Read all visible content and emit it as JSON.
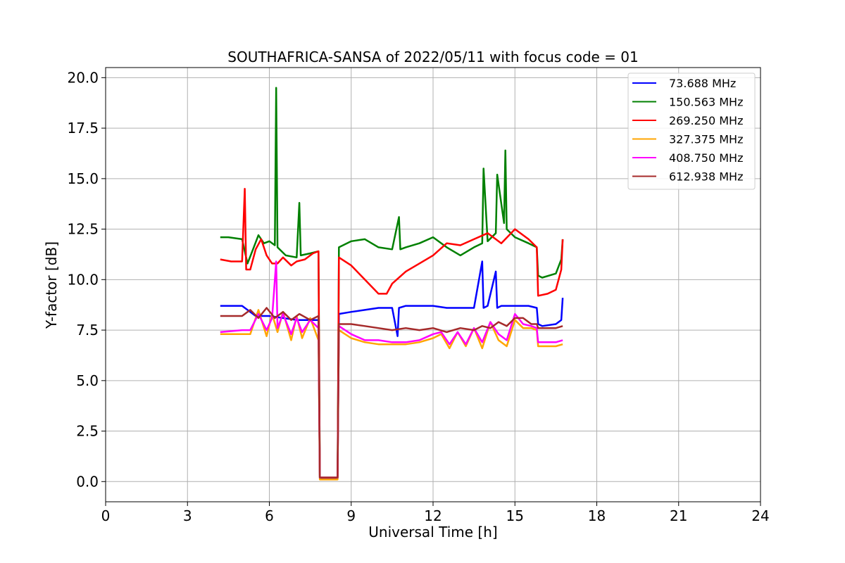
{
  "chart_data": {
    "type": "line",
    "title": "SOUTHAFRICA-SANSA of 2022/05/11 with focus code = 01",
    "xlabel": "Universal Time [h]",
    "ylabel": "Y-factor [dB]",
    "xlim": [
      0,
      24
    ],
    "ylim": [
      -1,
      20.5
    ],
    "xticks": [
      0,
      3,
      6,
      9,
      12,
      15,
      18,
      21,
      24
    ],
    "xtick_labels": [
      "0",
      "3",
      "6",
      "9",
      "12",
      "15",
      "18",
      "21",
      "24"
    ],
    "yticks": [
      0,
      2.5,
      5,
      7.5,
      10,
      12.5,
      15,
      17.5,
      20
    ],
    "ytick_labels": [
      "0.0",
      "2.5",
      "5.0",
      "7.5",
      "10.0",
      "12.5",
      "15.0",
      "17.5",
      "20.0"
    ],
    "grid": true,
    "legend_position": "top-right",
    "series": [
      {
        "name": "73.688 MHz",
        "color": "#0000ff",
        "x": [
          4.2,
          5.0,
          5.5,
          6.0,
          6.5,
          7.0,
          7.5,
          7.8,
          7.85,
          8.5,
          8.55,
          9.0,
          9.5,
          10.0,
          10.5,
          10.7,
          10.75,
          11.0,
          11.5,
          12.0,
          12.5,
          13.0,
          13.5,
          13.8,
          13.85,
          14.0,
          14.3,
          14.35,
          14.5,
          15.0,
          15.5,
          15.8,
          15.85,
          16.0,
          16.5,
          16.7,
          16.75
        ],
        "y": [
          8.7,
          8.7,
          8.2,
          8.2,
          8.1,
          8.0,
          8.0,
          8.0,
          0.15,
          0.15,
          8.3,
          8.4,
          8.5,
          8.6,
          8.6,
          7.2,
          8.6,
          8.7,
          8.7,
          8.7,
          8.6,
          8.6,
          8.6,
          10.9,
          8.6,
          8.7,
          10.4,
          8.6,
          8.7,
          8.7,
          8.7,
          8.6,
          7.8,
          7.7,
          7.8,
          8.0,
          9.1
        ]
      },
      {
        "name": "150.563 MHz",
        "color": "#008000",
        "x": [
          4.2,
          4.5,
          5.0,
          5.2,
          5.4,
          5.6,
          5.8,
          6.0,
          6.2,
          6.25,
          6.3,
          6.6,
          7.0,
          7.1,
          7.15,
          7.5,
          7.8,
          7.85,
          8.5,
          8.55,
          9.0,
          9.5,
          10.0,
          10.5,
          10.75,
          10.8,
          11.0,
          11.5,
          12.0,
          12.5,
          13.0,
          13.5,
          13.8,
          13.85,
          14.0,
          14.3,
          14.35,
          14.6,
          14.65,
          14.7,
          15.0,
          15.5,
          15.8,
          15.85,
          16.0,
          16.5,
          16.7,
          16.75
        ],
        "y": [
          12.1,
          12.1,
          12.0,
          10.8,
          11.5,
          12.2,
          11.8,
          11.9,
          11.7,
          19.5,
          11.6,
          11.2,
          11.1,
          13.8,
          11.2,
          11.3,
          11.4,
          0.2,
          0.2,
          11.6,
          11.9,
          12.0,
          11.6,
          11.5,
          13.1,
          11.5,
          11.6,
          11.8,
          12.1,
          11.6,
          11.2,
          11.6,
          11.8,
          15.5,
          11.9,
          12.3,
          15.2,
          12.8,
          16.4,
          12.5,
          12.1,
          11.8,
          11.6,
          10.2,
          10.1,
          10.3,
          11.0,
          12.0
        ]
      },
      {
        "name": "269.250 MHz",
        "color": "#ff0000",
        "x": [
          4.2,
          4.6,
          5.0,
          5.1,
          5.15,
          5.3,
          5.5,
          5.7,
          5.9,
          6.1,
          6.3,
          6.5,
          6.8,
          7.0,
          7.3,
          7.6,
          7.8,
          7.85,
          8.5,
          8.55,
          9.0,
          9.5,
          10.0,
          10.3,
          10.5,
          11.0,
          11.5,
          12.0,
          12.5,
          13.0,
          13.5,
          14.0,
          14.5,
          15.0,
          15.5,
          15.8,
          15.85,
          16.2,
          16.5,
          16.7,
          16.75
        ],
        "y": [
          11.0,
          10.9,
          10.9,
          14.5,
          10.5,
          10.5,
          11.5,
          12.0,
          11.2,
          10.8,
          10.8,
          11.1,
          10.7,
          10.9,
          11.0,
          11.3,
          11.4,
          0.2,
          0.2,
          11.1,
          10.7,
          10.0,
          9.3,
          9.3,
          9.8,
          10.4,
          10.8,
          11.2,
          11.8,
          11.7,
          12.0,
          12.3,
          11.8,
          12.5,
          12.0,
          11.6,
          9.2,
          9.3,
          9.5,
          10.5,
          12.0
        ]
      },
      {
        "name": "327.375 MHz",
        "color": "#ffa500",
        "x": [
          4.2,
          5.0,
          5.3,
          5.6,
          5.9,
          6.1,
          6.3,
          6.5,
          6.8,
          7.0,
          7.2,
          7.5,
          7.8,
          7.85,
          8.5,
          8.55,
          9.0,
          9.5,
          10.0,
          10.5,
          11.0,
          11.5,
          12.0,
          12.3,
          12.6,
          12.9,
          13.2,
          13.5,
          13.8,
          14.1,
          14.4,
          14.7,
          15.0,
          15.3,
          15.6,
          15.8,
          15.85,
          16.5,
          16.75
        ],
        "y": [
          7.3,
          7.3,
          7.3,
          8.5,
          7.2,
          8.3,
          7.4,
          8.4,
          7.0,
          8.2,
          7.1,
          8.1,
          7.0,
          0.1,
          0.1,
          7.5,
          7.1,
          6.9,
          6.8,
          6.8,
          6.8,
          6.9,
          7.1,
          7.3,
          6.6,
          7.4,
          6.7,
          7.6,
          6.6,
          7.9,
          7.0,
          6.7,
          8.0,
          7.6,
          7.6,
          7.5,
          6.7,
          6.7,
          6.8
        ]
      },
      {
        "name": "408.750 MHz",
        "color": "#ff00ff",
        "x": [
          4.2,
          5.0,
          5.3,
          5.6,
          5.9,
          6.1,
          6.25,
          6.3,
          6.5,
          6.8,
          7.0,
          7.2,
          7.5,
          7.8,
          7.85,
          8.5,
          8.55,
          9.0,
          9.5,
          10.0,
          10.5,
          11.0,
          11.5,
          12.0,
          12.3,
          12.6,
          12.9,
          13.2,
          13.5,
          13.8,
          14.1,
          14.4,
          14.7,
          15.0,
          15.3,
          15.6,
          15.8,
          15.85,
          16.5,
          16.75
        ],
        "y": [
          7.4,
          7.5,
          7.5,
          8.3,
          7.5,
          8.1,
          10.9,
          7.6,
          8.3,
          7.3,
          8.1,
          7.4,
          8.0,
          7.6,
          0.2,
          0.2,
          7.7,
          7.3,
          7.0,
          7.0,
          6.9,
          6.9,
          7.0,
          7.3,
          7.4,
          6.8,
          7.4,
          6.8,
          7.6,
          6.9,
          7.9,
          7.3,
          7.0,
          8.3,
          7.8,
          7.7,
          7.6,
          6.9,
          6.9,
          7.0
        ]
      },
      {
        "name": "612.938 MHz",
        "color": "#a52a2a",
        "x": [
          4.2,
          5.0,
          5.3,
          5.6,
          5.9,
          6.2,
          6.5,
          6.8,
          7.1,
          7.5,
          7.8,
          7.85,
          8.5,
          8.55,
          9.0,
          9.5,
          10.0,
          10.5,
          11.0,
          11.5,
          12.0,
          12.5,
          13.0,
          13.5,
          13.8,
          14.1,
          14.4,
          14.7,
          15.0,
          15.3,
          15.6,
          15.8,
          15.85,
          16.5,
          16.75
        ],
        "y": [
          8.2,
          8.2,
          8.5,
          8.1,
          8.6,
          8.1,
          8.4,
          8.0,
          8.3,
          8.0,
          8.2,
          0.2,
          0.2,
          7.8,
          7.8,
          7.7,
          7.6,
          7.5,
          7.6,
          7.5,
          7.6,
          7.4,
          7.6,
          7.5,
          7.7,
          7.6,
          7.9,
          7.7,
          8.1,
          8.1,
          7.8,
          7.8,
          7.6,
          7.6,
          7.7
        ]
      }
    ]
  }
}
